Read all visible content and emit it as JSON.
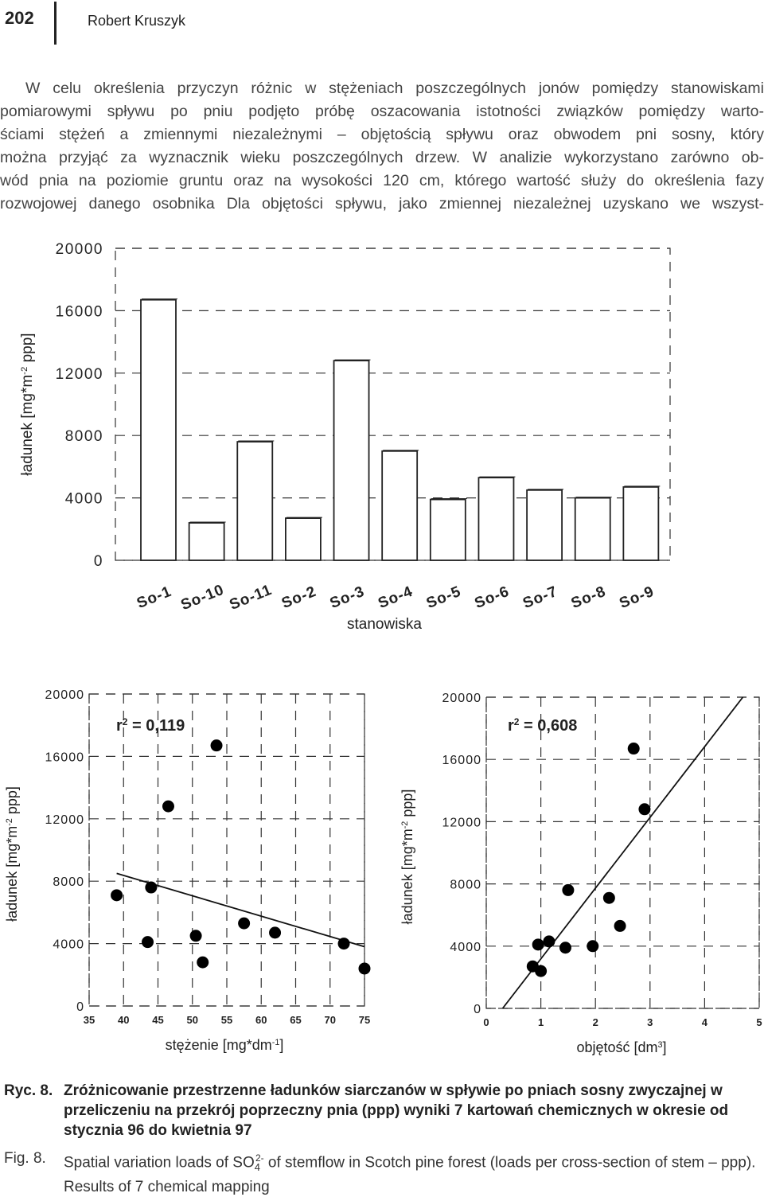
{
  "header": {
    "page_number": "202",
    "author": "Robert Kruszyk"
  },
  "paragraph": {
    "lines": [
      "W celu określenia przyczyn różnic w stężeniach poszczególnych jonów pomiędzy stanowiskami",
      "pomiarowymi spływu po pniu podjęto próbę oszacowania istotności związków pomiędzy warto-",
      "ściami stężeń a zmiennymi niezależnymi – objętością spływu oraz obwodem pni sosny, który",
      "można przyjąć za wyznacznik wieku poszczególnych drzew. W analizie wykorzystano zarówno ob-",
      "wód pnia na poziomie gruntu oraz na wysokości 120 cm, którego wartość służy do określenia fazy",
      "rozwojowej danego osobnika Dla objętości spływu, jako zmiennej niezależnej uzyskano we wszyst-"
    ]
  },
  "chart_data": [
    {
      "type": "bar",
      "categories": [
        "So-1",
        "So-10",
        "So-11",
        "So-2",
        "So-3",
        "So-4",
        "So-5",
        "So-6",
        "So-7",
        "So-8",
        "So-9"
      ],
      "values": [
        16700,
        2400,
        7600,
        2700,
        12800,
        7000,
        3900,
        5300,
        4500,
        4000,
        4700
      ],
      "xlabel": "stanowiska",
      "ylabel": "ładunek [mg*m-2 ppp]",
      "ylim": [
        0,
        20000
      ],
      "yticks": [
        "0",
        "4000",
        "8000",
        "12000",
        "16000",
        "20000"
      ],
      "grid": "dashed"
    },
    {
      "type": "scatter",
      "annotation": "r 2 = 0,119",
      "xlabel": "stężenie [mg*dm-1]",
      "ylabel": "ładunek [mg*m-2 ppp]",
      "xlim": [
        35,
        75
      ],
      "ylim": [
        0,
        20000
      ],
      "xticks": [
        "35",
        "40",
        "45",
        "50",
        "55",
        "60",
        "65",
        "70",
        "75"
      ],
      "yticks": [
        "0",
        "4000",
        "8000",
        "12000",
        "16000",
        "20000"
      ],
      "points": [
        {
          "x": 39,
          "y": 7100
        },
        {
          "x": 43.5,
          "y": 4100
        },
        {
          "x": 44,
          "y": 7600
        },
        {
          "x": 46.5,
          "y": 12800
        },
        {
          "x": 50.5,
          "y": 4500
        },
        {
          "x": 51.5,
          "y": 2800
        },
        {
          "x": 53.5,
          "y": 16700
        },
        {
          "x": 57.5,
          "y": 5300
        },
        {
          "x": 62,
          "y": 4700
        },
        {
          "x": 72,
          "y": 4000
        },
        {
          "x": 75,
          "y": 2400
        }
      ],
      "trendline": {
        "x": [
          39,
          75
        ],
        "y": [
          8500,
          3800
        ]
      }
    },
    {
      "type": "scatter",
      "annotation": "r 2 = 0,608",
      "xlabel": "objętość [dm3]",
      "ylabel": "ładunek [mg*m-2 ppp]",
      "xlim": [
        0,
        5
      ],
      "ylim": [
        0,
        20000
      ],
      "xticks": [
        "0",
        "1",
        "2",
        "3",
        "4",
        "5"
      ],
      "yticks": [
        "0",
        "4000",
        "8000",
        "12000",
        "16000",
        "20000"
      ],
      "points": [
        {
          "x": 0.85,
          "y": 2700
        },
        {
          "x": 0.95,
          "y": 4100
        },
        {
          "x": 1.0,
          "y": 2400
        },
        {
          "x": 1.15,
          "y": 4300
        },
        {
          "x": 1.45,
          "y": 3900
        },
        {
          "x": 1.5,
          "y": 7600
        },
        {
          "x": 1.95,
          "y": 4000
        },
        {
          "x": 2.25,
          "y": 7100
        },
        {
          "x": 2.45,
          "y": 5300
        },
        {
          "x": 2.7,
          "y": 16700
        },
        {
          "x": 2.9,
          "y": 12800
        }
      ],
      "trendline": {
        "x": [
          0.3,
          4.7
        ],
        "y": [
          0,
          20000
        ]
      }
    }
  ],
  "caption_pl": {
    "number": "Ryc. 8.",
    "text": "Zróżnicowanie przestrzenne ładunków siarczanów w spływie po pniach sosny zwyczajnej w przeliczeniu na przekrój poprzeczny pnia (ppp) wyniki 7 kartowań chemicznych w okresie od stycznia 96 do kwietnia 97"
  },
  "caption_en": {
    "number": "Fig. 8.",
    "text_before": "Spatial variation loads of SO",
    "sub": "4",
    "sup": "2-",
    "text_after": " of stemflow in Scotch pine forest (loads per cross-section of stem – ppp). Results of 7 chemical mapping"
  }
}
